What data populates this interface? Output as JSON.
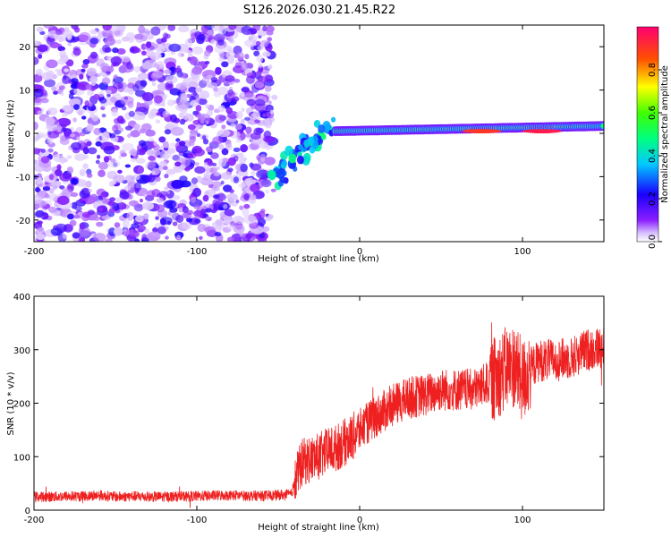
{
  "figure": {
    "title": "S126.2026.030.21.45.R22"
  },
  "chart_data": [
    {
      "type": "heatmap",
      "xlabel": "Height of straight line (km)",
      "ylabel": "Frequency (Hz)",
      "xlim": [
        -200,
        150
      ],
      "ylim": [
        -25,
        25
      ],
      "xticks": [
        -200,
        -100,
        0,
        100
      ],
      "yticks": [
        -20,
        -10,
        0,
        10,
        20
      ],
      "colorbar": {
        "label": "Normalized spectral amplitude",
        "range": [
          0,
          1
        ],
        "ticks": [
          0.0,
          0.2,
          0.4,
          0.6,
          0.8
        ],
        "tick_labels": [
          "0.0",
          "0.2",
          "0.4",
          "0.6",
          "0.8"
        ],
        "colormap": [
          "#ffffff",
          "#7f00ff",
          "#0000ff",
          "#00ffff",
          "#00ff00",
          "#ffff00",
          "#ff0000",
          "#ff0080"
        ]
      },
      "regions": [
        {
          "description": "broadband noise",
          "x": [
            -200,
            -55
          ],
          "frequency": [
            -25,
            25
          ],
          "amplitude": [
            0.0,
            0.2
          ]
        },
        {
          "description": "signal onset, scattered",
          "x": [
            -55,
            -15
          ],
          "frequency": [
            -13,
            5
          ],
          "amplitude": [
            0.2,
            0.5
          ]
        },
        {
          "description": "narrowband tone near 0 Hz",
          "x": [
            -15,
            150
          ],
          "frequency": [
            0,
            2
          ],
          "amplitude": [
            0.4,
            1.0
          ]
        }
      ],
      "peaks": [
        {
          "x": 75,
          "frequency": 0.5,
          "amplitude": 0.9
        },
        {
          "x": 112,
          "frequency": 0.5,
          "amplitude": 0.95
        }
      ]
    },
    {
      "type": "line",
      "xlabel": "Height of straight line (km)",
      "ylabel": "SNR (10 * v/v)",
      "xlim": [
        -200,
        150
      ],
      "ylim": [
        0,
        400
      ],
      "xticks": [
        -200,
        -100,
        0,
        100
      ],
      "yticks": [
        0,
        100,
        200,
        300,
        400
      ],
      "series": [
        {
          "color": "#ee2020",
          "x": [
            -200,
            -190,
            -180,
            -170,
            -160,
            -150,
            -140,
            -130,
            -120,
            -110,
            -100,
            -90,
            -80,
            -70,
            -60,
            -50,
            -42,
            -38,
            -35,
            -30,
            -25,
            -20,
            -15,
            -10,
            -5,
            0,
            10,
            20,
            30,
            40,
            50,
            60,
            70,
            80,
            85,
            90,
            95,
            100,
            105,
            110,
            120,
            130,
            140,
            150
          ],
          "y": [
            25,
            25,
            26,
            26,
            28,
            25,
            26,
            25,
            25,
            26,
            26,
            27,
            28,
            27,
            27,
            28,
            30,
            70,
            90,
            95,
            100,
            110,
            115,
            125,
            135,
            150,
            175,
            195,
            210,
            215,
            225,
            225,
            225,
            240,
            250,
            265,
            270,
            240,
            265,
            280,
            280,
            285,
            300,
            305
          ]
        }
      ]
    }
  ]
}
